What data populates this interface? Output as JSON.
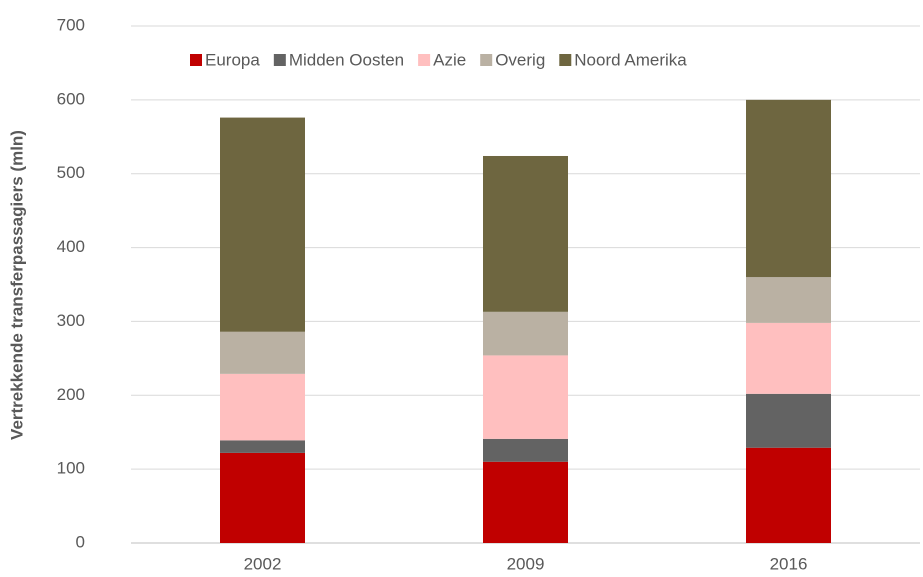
{
  "chart_data": {
    "type": "stacked_bar",
    "y_axis_label": "Vertrekkende transferpassagiers (mln)",
    "categories": [
      "2002",
      "2009",
      "2016"
    ],
    "series": [
      {
        "name": "Europa",
        "color": "#c00000",
        "values": [
          122,
          110,
          129
        ]
      },
      {
        "name": "Midden Oosten",
        "color": "#636363",
        "values": [
          17,
          31,
          73
        ]
      },
      {
        "name": "Azie",
        "color": "#ffbfbf",
        "values": [
          90,
          113,
          96
        ]
      },
      {
        "name": "Overig",
        "color": "#bab1a3",
        "values": [
          57,
          59,
          62
        ]
      },
      {
        "name": "Noord Amerika",
        "color": "#6e6640",
        "values": [
          290,
          211,
          240
        ]
      }
    ],
    "ylim": [
      0,
      700
    ],
    "yticks": [
      0,
      100,
      200,
      300,
      400,
      500,
      600,
      700
    ],
    "grid": true,
    "legend": "top"
  }
}
